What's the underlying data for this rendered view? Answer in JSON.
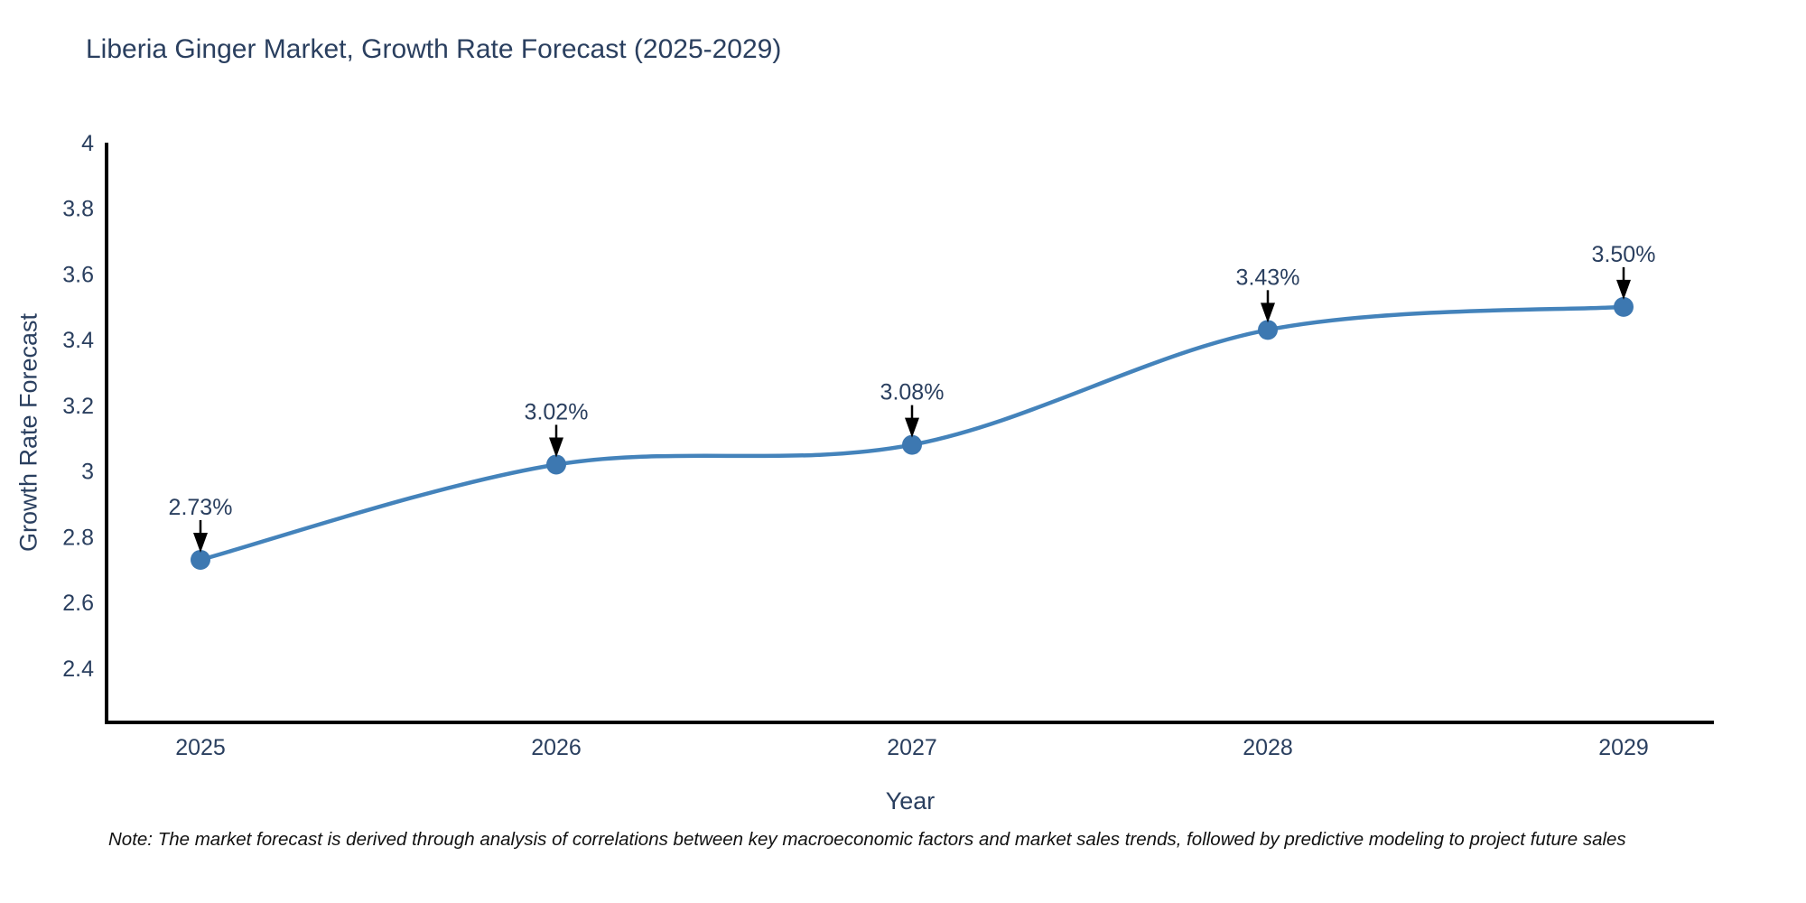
{
  "title": "Liberia Ginger Market, Growth Rate Forecast (2025-2029)",
  "note": "Note: The market forecast is derived through analysis of correlations between key macroeconomic factors and market sales trends, followed by predictive modeling to project future sales",
  "chart_data": {
    "type": "line",
    "title": "Liberia Ginger Market, Growth Rate Forecast (2025-2029)",
    "xlabel": "Year",
    "ylabel": "Growth Rate Forecast",
    "categories": [
      "2025",
      "2026",
      "2027",
      "2028",
      "2029"
    ],
    "values": [
      2.73,
      3.02,
      3.08,
      3.43,
      3.5
    ],
    "point_labels": [
      "2.73%",
      "3.02%",
      "3.08%",
      "3.43%",
      "3.50%"
    ],
    "line_shape": "spline",
    "markers": true,
    "annotations_arrows": true,
    "grid": false,
    "legend": "none",
    "ylim": [
      2.235,
      4.0
    ],
    "yticks": [
      2.4,
      2.6,
      2.8,
      3,
      3.2,
      3.4,
      3.6,
      3.8,
      4
    ],
    "ytick_labels": [
      "2.4",
      "2.6",
      "2.8",
      "3",
      "3.2",
      "3.4",
      "3.6",
      "3.8",
      "4"
    ],
    "colors": {
      "line": "#4483bb",
      "marker": "#3d78b1",
      "arrow": "#000000",
      "axis_line": "#000000",
      "tick_text": "#2a3f5f",
      "title_text": "#2a3f5f",
      "note_text": "#111111",
      "background": "#ffffff"
    }
  }
}
